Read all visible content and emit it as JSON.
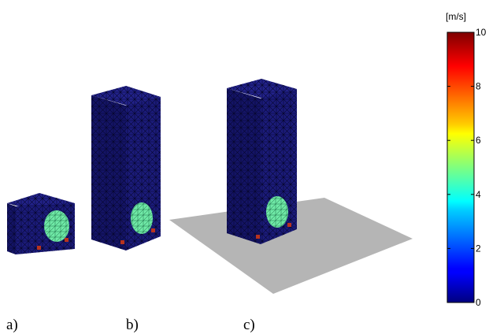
{
  "figure": {
    "panels": [
      {
        "id": "a",
        "label": "a)",
        "shape": "short-box",
        "ground_plane": false
      },
      {
        "id": "b",
        "label": "b)",
        "shape": "tall-box",
        "ground_plane": false
      },
      {
        "id": "c",
        "label": "c)",
        "shape": "tall-box",
        "ground_plane": true
      }
    ]
  },
  "colorbar": {
    "unit": "[m/s]",
    "min": 0,
    "max": 10,
    "ticks": [
      "0",
      "2",
      "4",
      "6",
      "8",
      "10"
    ]
  },
  "colors": {
    "mesh_face": "#1b1b7a",
    "mesh_side": "#141466",
    "mesh_top": "#22228a",
    "mesh_line": "#06062e",
    "inlet_disc": "#6fe8a6",
    "ground": "#b5b5b5",
    "hot_spots": "#b8331e"
  }
}
